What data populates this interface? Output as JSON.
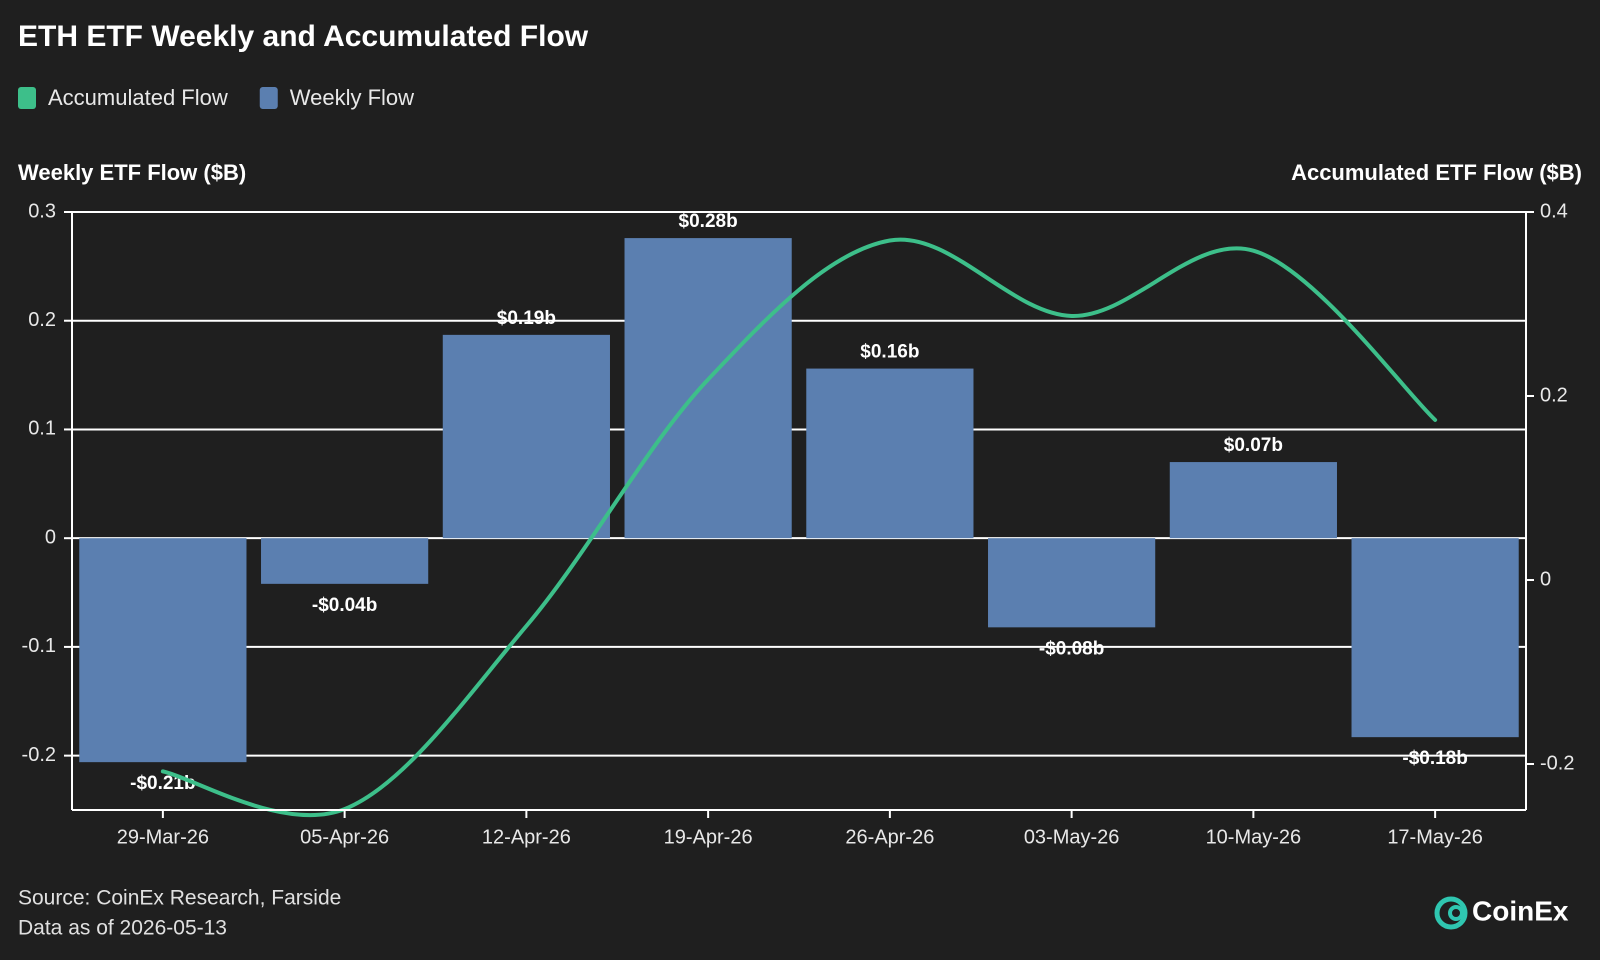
{
  "chart_data": {
    "type": "bar_line",
    "title": "ETH ETF Weekly and Accumulated Flow",
    "y_axis_title": "Weekly ETF Flow ($B)",
    "y2_axis_title": "Accumulated ETF Flow ($B)",
    "categories": [
      "29-Mar-26",
      "05-Apr-26",
      "12-Apr-26",
      "19-Apr-26",
      "26-Apr-26",
      "03-May-26",
      "10-May-26",
      "17-May-26"
    ],
    "series": [
      {
        "name": "Accumulated Flow",
        "type": "line",
        "axis": "y2",
        "color": "#3dbf8a",
        "values": [
          -0.208,
          -0.249,
          -0.05,
          0.218,
          0.369,
          0.287,
          0.358,
          0.174
        ]
      },
      {
        "name": "Weekly Flow",
        "type": "bar",
        "axis": "y",
        "color": "#5b7fb0",
        "values": [
          -0.206,
          -0.042,
          0.187,
          0.276,
          0.156,
          -0.082,
          0.07,
          -0.183
        ],
        "value_labels": [
          "-$0.21b",
          "-$0.04b",
          "$0.19b",
          "$0.28b",
          "$0.16b",
          "-$0.08b",
          "$0.07b",
          "-$0.18b"
        ]
      }
    ],
    "ylim": [
      -0.25,
      0.3
    ],
    "yticks": [
      -0.2,
      -0.1,
      0,
      0.1,
      0.2,
      0.3
    ],
    "y2lim": [
      -0.25,
      0.4
    ],
    "y2ticks": [
      -0.2,
      0,
      0.2,
      0.4
    ],
    "grid": true,
    "legend": "top-left",
    "source": "Source: CoinEx Research, Farside",
    "note": "Data as of 2026-05-13",
    "brand": "CoinEx"
  }
}
